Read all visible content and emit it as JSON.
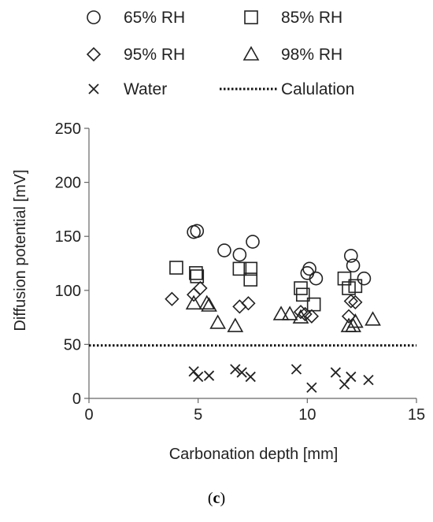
{
  "chart_data": {
    "type": "scatter",
    "xlabel": "Carbonation depth [mm]",
    "ylabel": "Diffusion potential [mV]",
    "xlim": [
      0,
      15
    ],
    "ylim": [
      0,
      250
    ],
    "xticks": [
      0,
      5,
      10,
      15
    ],
    "yticks": [
      0,
      50,
      100,
      150,
      200,
      250
    ],
    "grid": false,
    "legend_position": "top",
    "series": [
      {
        "name": "65% RH",
        "marker": "circle",
        "points": [
          [
            4.8,
            154
          ],
          [
            4.95,
            155
          ],
          [
            6.2,
            137
          ],
          [
            6.9,
            133
          ],
          [
            7.5,
            145
          ],
          [
            10.0,
            116
          ],
          [
            10.1,
            120
          ],
          [
            10.4,
            111
          ],
          [
            12.0,
            132
          ],
          [
            12.1,
            123
          ],
          [
            12.6,
            111
          ]
        ]
      },
      {
        "name": "85% RH",
        "marker": "square",
        "points": [
          [
            4.0,
            121
          ],
          [
            4.9,
            116
          ],
          [
            4.95,
            113
          ],
          [
            6.9,
            120
          ],
          [
            7.4,
            120
          ],
          [
            7.4,
            110
          ],
          [
            9.7,
            102
          ],
          [
            9.8,
            96
          ],
          [
            10.3,
            87
          ],
          [
            11.7,
            111
          ],
          [
            11.9,
            102
          ],
          [
            12.2,
            104
          ]
        ]
      },
      {
        "name": "95% RH",
        "marker": "diamond",
        "points": [
          [
            3.8,
            92
          ],
          [
            4.8,
            96
          ],
          [
            5.1,
            102
          ],
          [
            6.9,
            85
          ],
          [
            7.3,
            88
          ],
          [
            9.7,
            80
          ],
          [
            9.9,
            78
          ],
          [
            10.2,
            76
          ],
          [
            11.9,
            76
          ],
          [
            12.0,
            90
          ],
          [
            12.2,
            89
          ]
        ]
      },
      {
        "name": "98% RH",
        "marker": "triangle",
        "points": [
          [
            4.8,
            88
          ],
          [
            5.4,
            88
          ],
          [
            5.5,
            86
          ],
          [
            5.9,
            70
          ],
          [
            6.7,
            67
          ],
          [
            8.8,
            78
          ],
          [
            9.2,
            78
          ],
          [
            9.7,
            75
          ],
          [
            11.9,
            67
          ],
          [
            12.1,
            67
          ],
          [
            12.2,
            71
          ],
          [
            13.0,
            73
          ]
        ]
      },
      {
        "name": "Water",
        "marker": "x",
        "points": [
          [
            4.8,
            25
          ],
          [
            5.0,
            20
          ],
          [
            5.5,
            21
          ],
          [
            6.7,
            27
          ],
          [
            7.0,
            24
          ],
          [
            7.4,
            20
          ],
          [
            9.5,
            27
          ],
          [
            10.2,
            10
          ],
          [
            11.3,
            24
          ],
          [
            11.7,
            13
          ],
          [
            12.0,
            20
          ],
          [
            12.8,
            17
          ]
        ]
      },
      {
        "name": "Calulation",
        "marker": "dotted-line",
        "y": 49
      }
    ]
  },
  "caption": {
    "open": "(",
    "letter": "c",
    "close": ")"
  }
}
